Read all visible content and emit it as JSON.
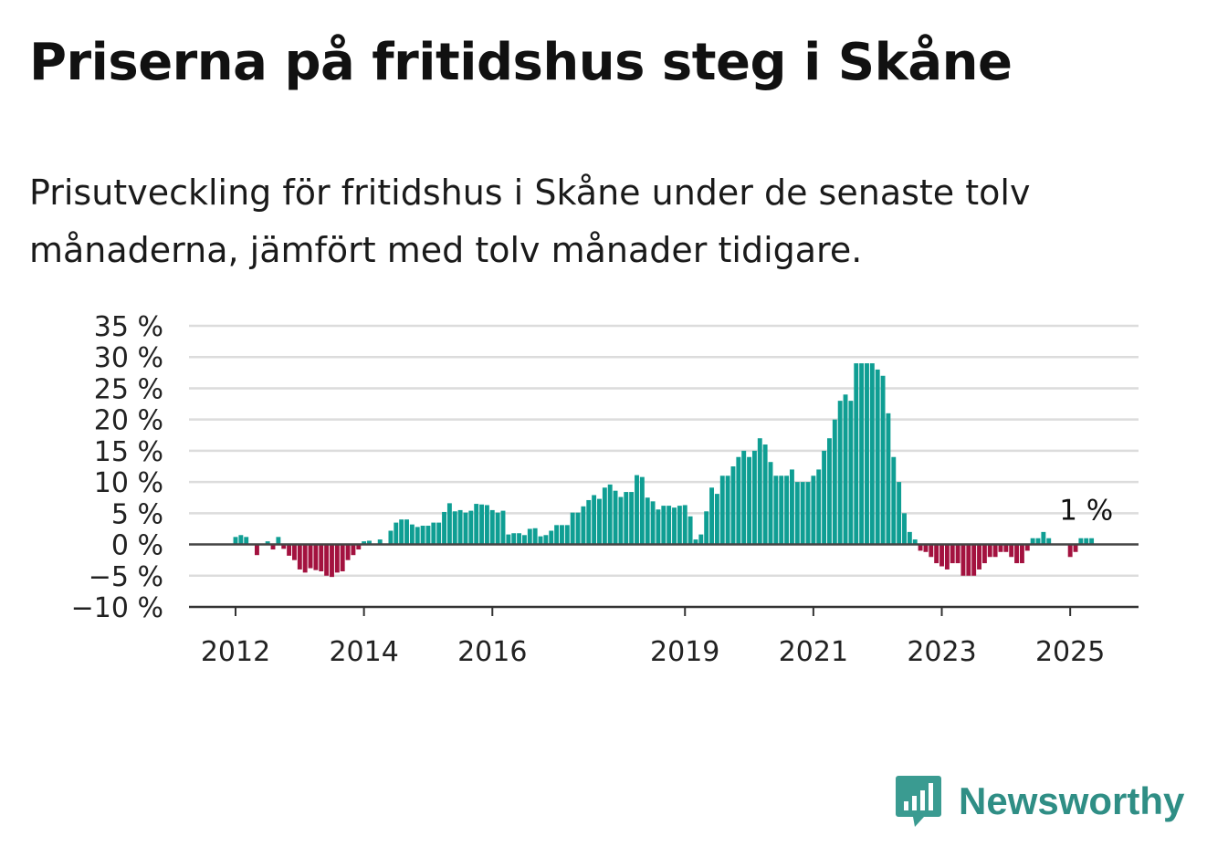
{
  "title": "Priserna på fritidshus steg i Skåne",
  "subtitle": "Prisutveckling för fritidshus i Skåne under de senaste tolv månaderna, jämfört med tolv månader tidigare.",
  "brand": {
    "name": "Newsworthy",
    "icon": "bar-chart-speech-bubble-icon"
  },
  "colors": {
    "positive": "#0f9e93",
    "negative": "#a3123f",
    "grid": "#dcdcdc",
    "axis": "#333333",
    "brand": "#2f8e85"
  },
  "chart_data": {
    "type": "bar",
    "title": "",
    "xlabel": "",
    "ylabel": "",
    "ylim": [
      -10,
      35
    ],
    "yticks": [
      -10,
      -5,
      0,
      5,
      10,
      15,
      20,
      25,
      30,
      35
    ],
    "ytick_labels": [
      "−10 %",
      "−5 %",
      "0 %",
      "5 %",
      "10 %",
      "15 %",
      "20 %",
      "25 %",
      "30 %",
      "35 %"
    ],
    "xtick_labels": [
      {
        "label": "2012",
        "date": "2012-01"
      },
      {
        "label": "2014",
        "date": "2014-01"
      },
      {
        "label": "2016",
        "date": "2016-01"
      },
      {
        "label": "2019",
        "date": "2019-01"
      },
      {
        "label": "2021",
        "date": "2021-01"
      },
      {
        "label": "2023",
        "date": "2023-01"
      },
      {
        "label": "2025",
        "date": "2025-01"
      }
    ],
    "grid": true,
    "annotation": {
      "text": "1 %",
      "date": "2025-04",
      "value": 1
    },
    "start_month": "2012-01",
    "values": [
      1.2,
      1.5,
      1.2,
      0,
      -1.7,
      0,
      0.5,
      -0.8,
      1.2,
      -0.7,
      -1.8,
      -2.5,
      -4,
      -4.5,
      -3.8,
      -4.1,
      -4.3,
      -5,
      -5.2,
      -4.5,
      -4.3,
      -2.5,
      -1.7,
      -0.8,
      0.5,
      0.6,
      0,
      0.8,
      0,
      2.2,
      3.5,
      4,
      4,
      3.2,
      2.8,
      3,
      3,
      3.5,
      3.5,
      5.2,
      6.6,
      5.3,
      5.5,
      5.1,
      5.4,
      6.5,
      6.4,
      6.3,
      5.5,
      5.1,
      5.4,
      1.6,
      1.8,
      1.8,
      1.5,
      2.5,
      2.6,
      1.3,
      1.5,
      2.2,
      3.1,
      3.1,
      3.1,
      5.1,
      5.1,
      6.1,
      7.1,
      7.9,
      7.3,
      9.1,
      9.6,
      8.6,
      7.6,
      8.4,
      8.4,
      11.1,
      10.8,
      7.5,
      6.9,
      5.6,
      6.2,
      6.2,
      5.9,
      6.2,
      6.3,
      4.5,
      0.8,
      1.6,
      5.3,
      9.1,
      8.1,
      11,
      11,
      12.5,
      14,
      15,
      14,
      15,
      17,
      16,
      13.2,
      11,
      11,
      11,
      12,
      10,
      10,
      10,
      11,
      12,
      15,
      17,
      20,
      23,
      24,
      23,
      29,
      29,
      29,
      29,
      28,
      27,
      21,
      14,
      10,
      5,
      2,
      0.8,
      -1,
      -1.2,
      -2,
      -3,
      -3.5,
      -4,
      -3,
      -3,
      -5,
      -5,
      -5,
      -4,
      -3,
      -2,
      -2,
      -1.2,
      -1.2,
      -2,
      -3,
      -3,
      -1,
      1,
      1,
      2,
      1,
      0,
      0,
      0,
      -2,
      -1.2,
      1,
      1,
      1
    ]
  }
}
